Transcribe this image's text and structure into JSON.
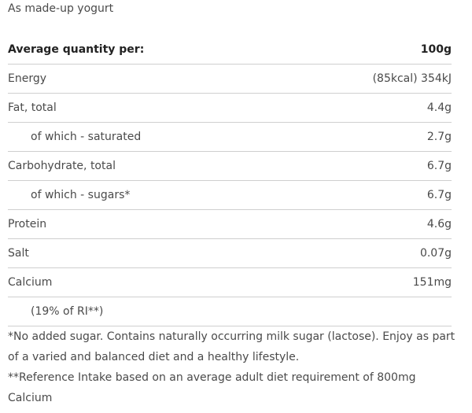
{
  "subtitle": "As made-up yogurt",
  "table": {
    "header": {
      "label": "Average quantity per:",
      "value": "100g"
    },
    "rows": [
      {
        "label": "Energy",
        "value": "(85kcal) 354kJ"
      },
      {
        "label": "Fat, total",
        "value": "4.4g"
      },
      {
        "label": "of which - saturated",
        "value": "2.7g"
      },
      {
        "label": "Carbohydrate, total",
        "value": "6.7g"
      },
      {
        "label": "of which - sugars*",
        "value": "6.7g"
      },
      {
        "label": "Protein",
        "value": "4.6g"
      },
      {
        "label": "Salt",
        "value": "0.07g"
      },
      {
        "label": "Calcium",
        "value": "151mg"
      },
      {
        "label": "(19% of RI**)",
        "value": ""
      }
    ]
  },
  "footnotes": [
    "*No added sugar. Contains naturally occurring milk sugar (lactose). Enjoy as part of a varied and balanced diet and a healthy lifestyle.",
    "**Reference Intake based on an average adult diet requirement of 800mg Calcium"
  ]
}
